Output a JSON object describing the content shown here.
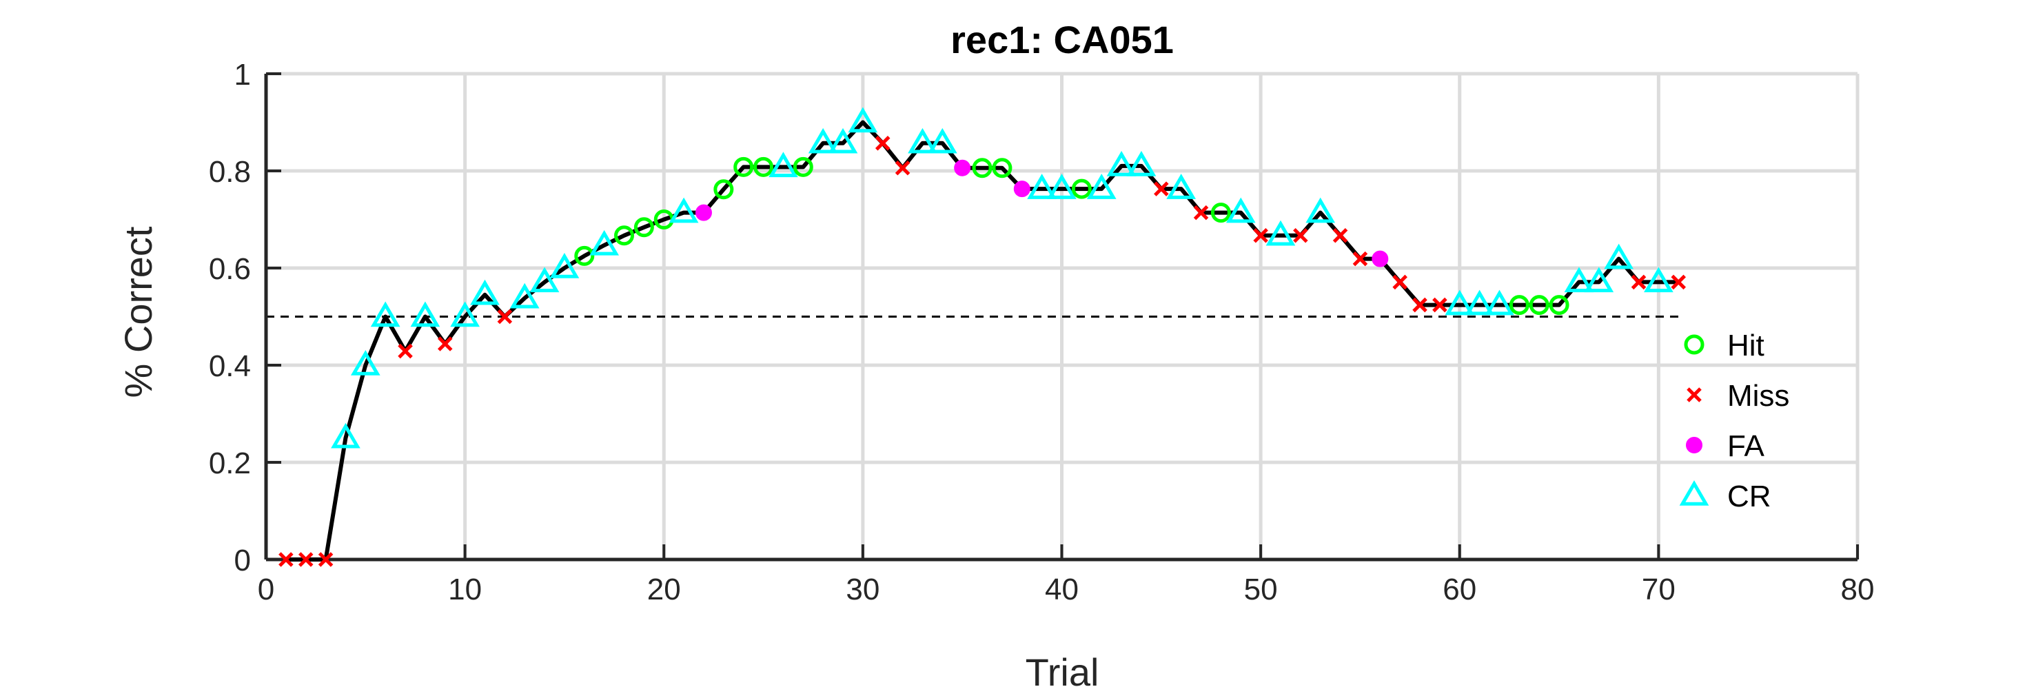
{
  "chart_data": {
    "type": "line",
    "title": "rec1: CA051",
    "xlabel": "Trial",
    "ylabel": "% Correct",
    "xlim": [
      0,
      80
    ],
    "ylim": [
      0,
      1
    ],
    "xticks": [
      "0",
      "10",
      "20",
      "30",
      "40",
      "50",
      "60",
      "70",
      "80"
    ],
    "yticks": [
      "0",
      "0.2",
      "0.4",
      "0.6",
      "0.8",
      "1"
    ],
    "grid": true,
    "chance_level": 0.5,
    "chance_x_range": [
      0,
      71
    ],
    "legend_position": "right",
    "line_color": "#000000",
    "x": [
      1,
      2,
      3,
      4,
      5,
      6,
      7,
      8,
      9,
      10,
      11,
      12,
      13,
      14,
      15,
      16,
      17,
      18,
      19,
      20,
      21,
      22,
      23,
      24,
      25,
      26,
      27,
      28,
      29,
      30,
      31,
      32,
      33,
      34,
      35,
      36,
      37,
      38,
      39,
      40,
      41,
      42,
      43,
      44,
      45,
      46,
      47,
      48,
      49,
      50,
      51,
      52,
      53,
      54,
      55,
      56,
      57,
      58,
      59,
      60,
      61,
      62,
      63,
      64,
      65,
      66,
      67,
      68,
      69,
      70,
      71
    ],
    "y": [
      0,
      0,
      0,
      0.25,
      0.4,
      0.5,
      0.429,
      0.5,
      0.444,
      0.5,
      0.545,
      0.5,
      0.538,
      0.571,
      0.6,
      0.625,
      0.647,
      0.667,
      0.684,
      0.7,
      0.714,
      0.714,
      0.762,
      0.808,
      0.808,
      0.808,
      0.808,
      0.857,
      0.857,
      0.9,
      0.857,
      0.806,
      0.857,
      0.857,
      0.806,
      0.806,
      0.806,
      0.763,
      0.763,
      0.763,
      0.763,
      0.763,
      0.81,
      0.81,
      0.763,
      0.763,
      0.714,
      0.714,
      0.714,
      0.667,
      0.667,
      0.667,
      0.714,
      0.667,
      0.619,
      0.619,
      0.571,
      0.524,
      0.524,
      0.524,
      0.524,
      0.524,
      0.524,
      0.524,
      0.524,
      0.571,
      0.571,
      0.619,
      0.571,
      0.571,
      0.571
    ],
    "outcome": [
      "Miss",
      "Miss",
      "Miss",
      "CR",
      "CR",
      "CR",
      "Miss",
      "CR",
      "Miss",
      "CR",
      "CR",
      "Miss",
      "CR",
      "CR",
      "CR",
      "Hit",
      "CR",
      "Hit",
      "Hit",
      "Hit",
      "CR",
      "FA",
      "Hit",
      "Hit",
      "Hit",
      "CR",
      "Hit",
      "CR",
      "CR",
      "CR",
      "Miss",
      "Miss",
      "CR",
      "CR",
      "FA",
      "Hit",
      "Hit",
      "FA",
      "CR",
      "CR",
      "Hit",
      "CR",
      "CR",
      "CR",
      "Miss",
      "CR",
      "Miss",
      "Hit",
      "CR",
      "Miss",
      "CR",
      "Miss",
      "CR",
      "Miss",
      "Miss",
      "FA",
      "Miss",
      "Miss",
      "Miss",
      "CR",
      "CR",
      "CR",
      "Hit",
      "Hit",
      "Hit",
      "CR",
      "CR",
      "CR",
      "Miss",
      "CR",
      "Miss"
    ],
    "series": [
      {
        "name": "Hit",
        "marker": "circle",
        "color": "#00ff00"
      },
      {
        "name": "Miss",
        "marker": "x",
        "color": "#ff0000"
      },
      {
        "name": "FA",
        "marker": "dot",
        "color": "#ff00ff"
      },
      {
        "name": "CR",
        "marker": "triangle",
        "color": "#00ffff"
      }
    ]
  }
}
